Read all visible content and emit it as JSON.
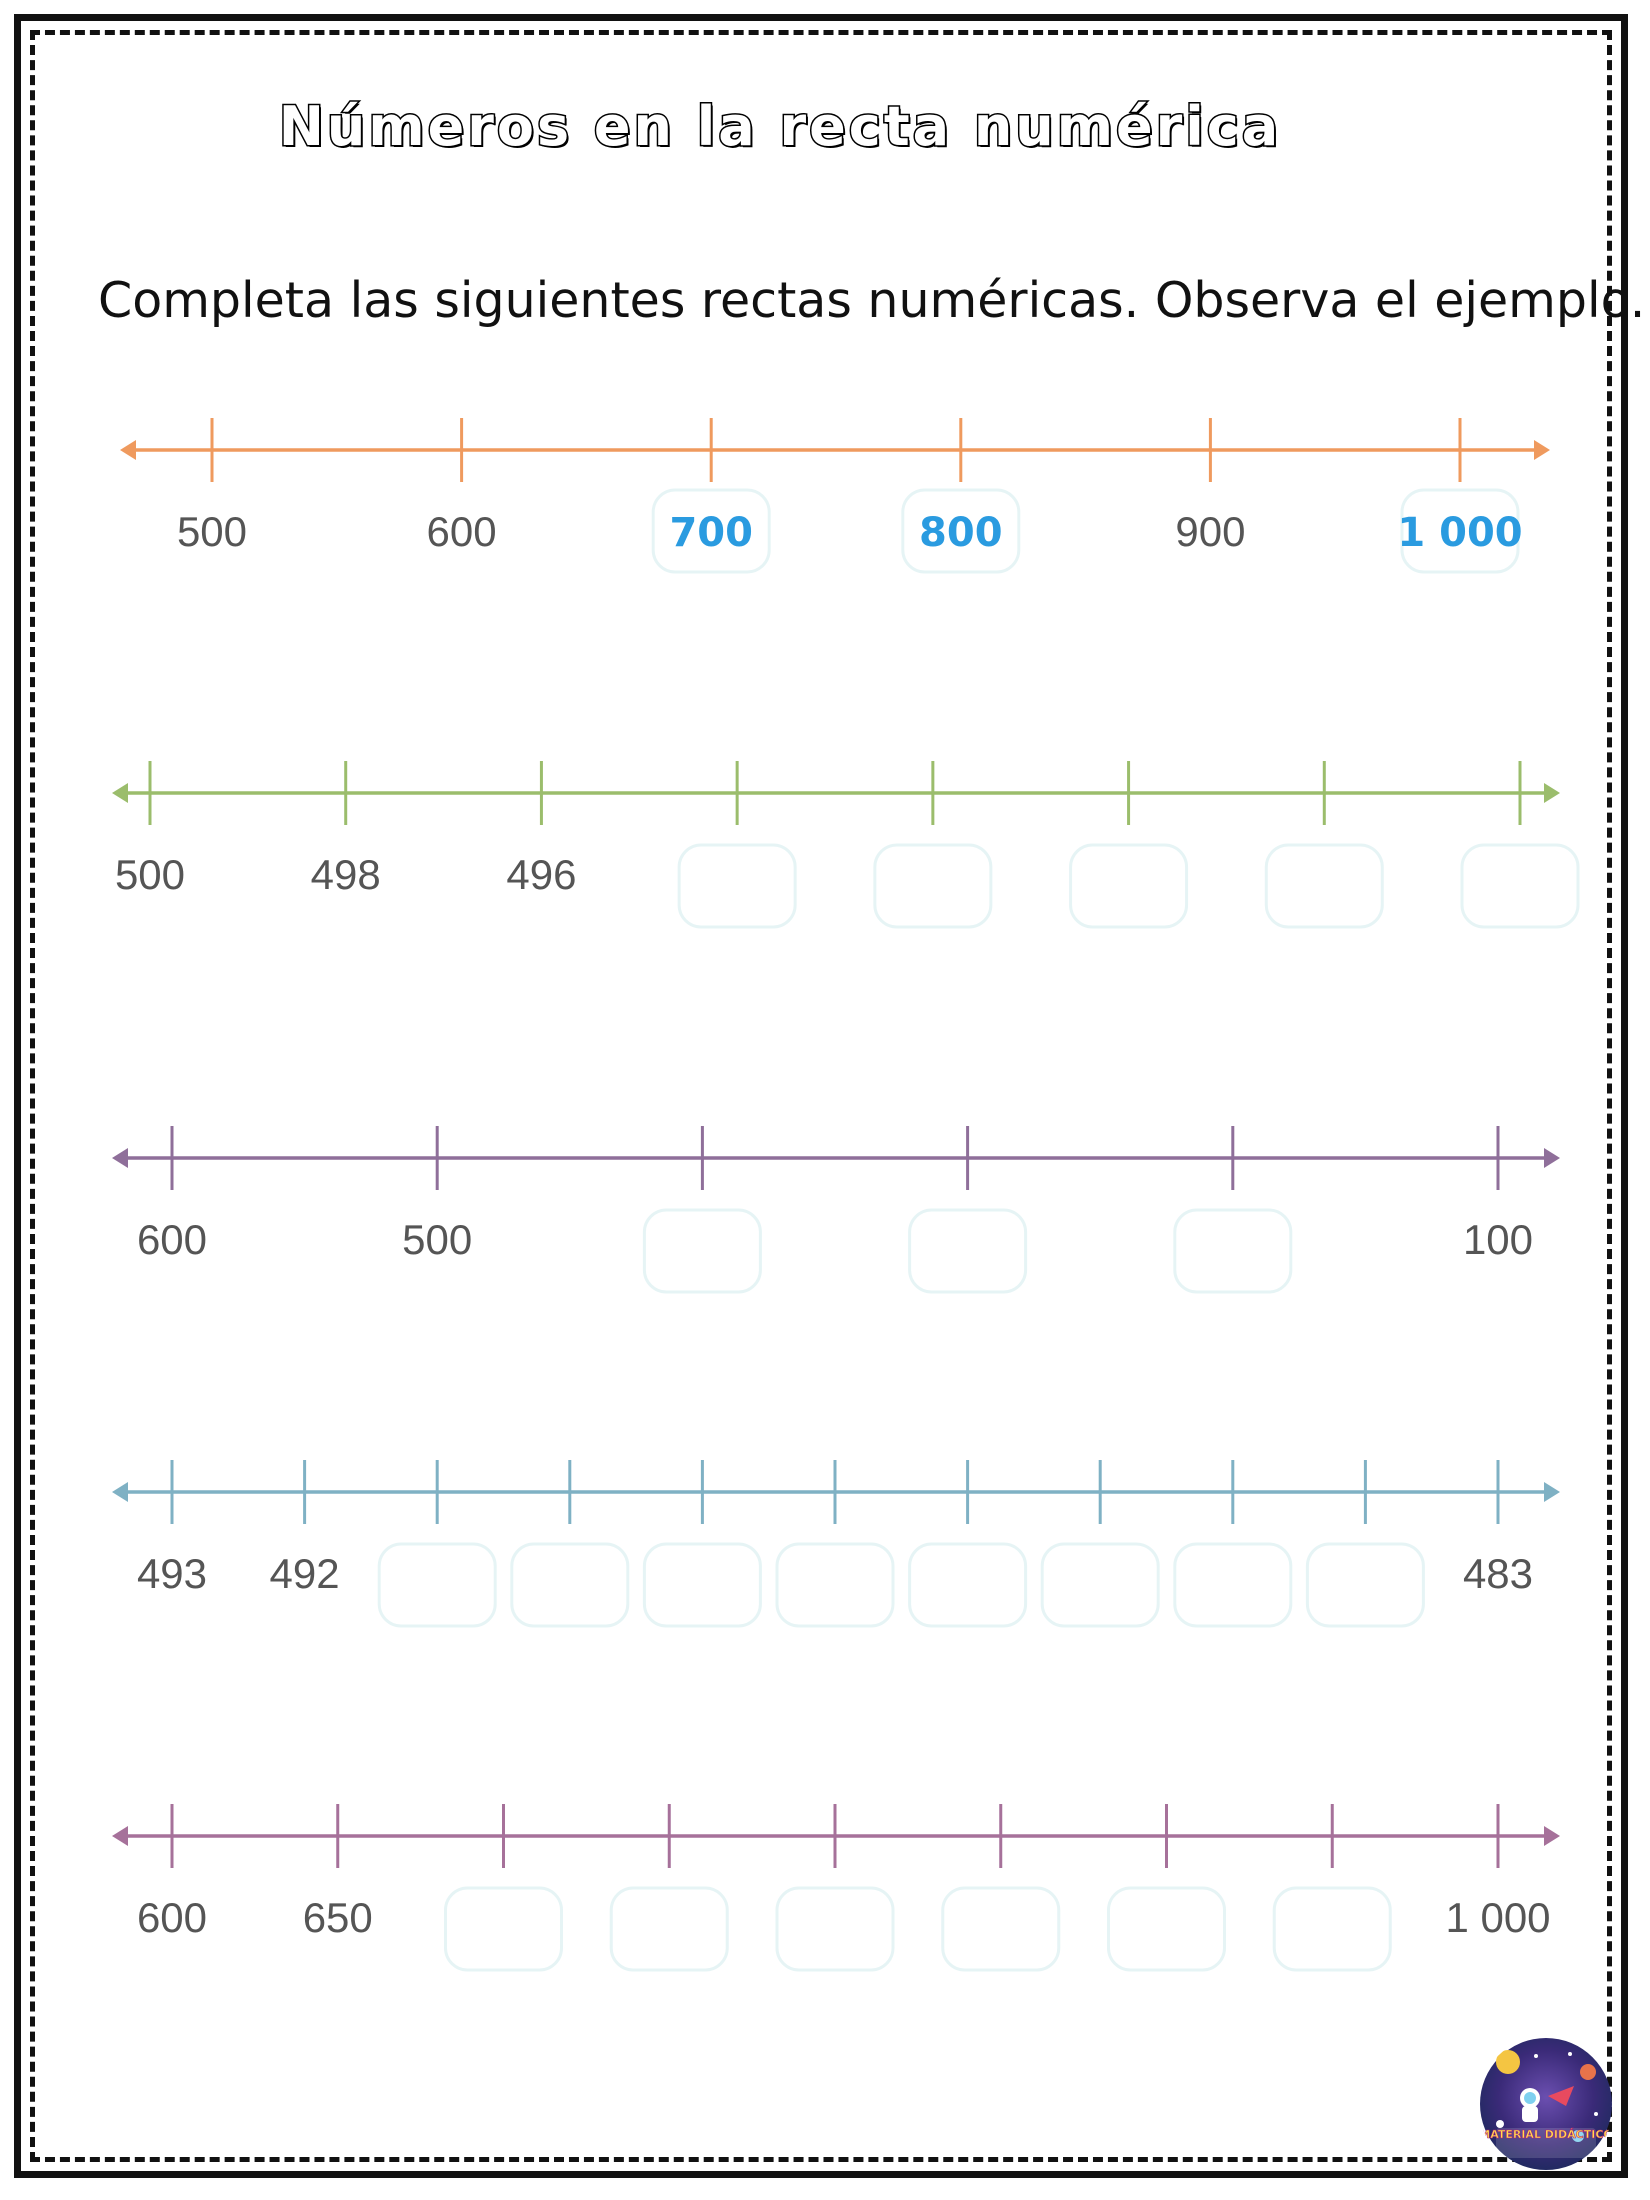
{
  "title": "Números en la recta numérica",
  "instruction": "Completa las siguientes rectas numéricas. Observa el ejemplo.",
  "lines": [
    {
      "color": "#ef9a5e",
      "ticks": [
        {
          "label": "500"
        },
        {
          "label": "600"
        },
        {
          "label": "700",
          "answer": true
        },
        {
          "label": "800",
          "answer": true
        },
        {
          "label": "900"
        },
        {
          "label": "1 000",
          "answer": true
        }
      ]
    },
    {
      "color": "#9bbd6c",
      "ticks": [
        {
          "label": "500"
        },
        {
          "label": "498"
        },
        {
          "label": "496"
        },
        {
          "blank": true
        },
        {
          "blank": true
        },
        {
          "blank": true
        },
        {
          "blank": true
        },
        {
          "blank": true
        }
      ]
    },
    {
      "color": "#8f6f9a",
      "ticks": [
        {
          "label": "600"
        },
        {
          "label": "500"
        },
        {
          "blank": true
        },
        {
          "blank": true
        },
        {
          "blank": true
        },
        {
          "label": "100"
        }
      ]
    },
    {
      "color": "#7fb1c4",
      "ticks": [
        {
          "label": "493"
        },
        {
          "label": "492"
        },
        {
          "blank": true
        },
        {
          "blank": true
        },
        {
          "blank": true
        },
        {
          "blank": true
        },
        {
          "blank": true
        },
        {
          "blank": true
        },
        {
          "blank": true
        },
        {
          "blank": true
        },
        {
          "label": "483"
        }
      ]
    },
    {
      "color": "#a6719a",
      "ticks": [
        {
          "label": "600"
        },
        {
          "label": "650"
        },
        {
          "blank": true
        },
        {
          "blank": true
        },
        {
          "blank": true
        },
        {
          "blank": true
        },
        {
          "blank": true
        },
        {
          "blank": true
        },
        {
          "label": "1 000"
        }
      ]
    }
  ],
  "logo": {
    "icon": "material-didactico-logo",
    "text": "MATERIAL DIDÁCTICO"
  }
}
